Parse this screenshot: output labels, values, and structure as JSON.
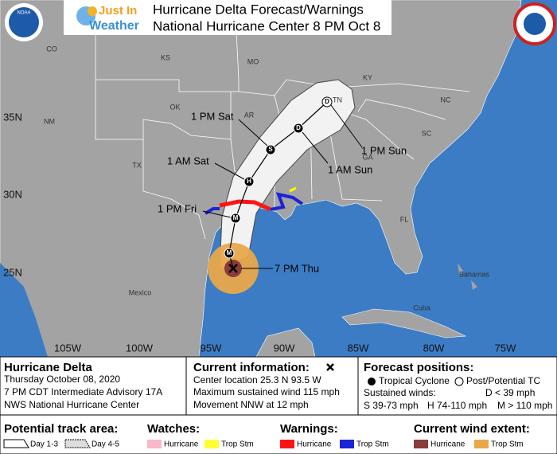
{
  "header": {
    "title": "Hurricane Delta Forecast/Warnings",
    "subtitle": "National Hurricane Center 8 PM Oct 8",
    "logo_line1": "Just In",
    "logo_line2": "Weather",
    "noaa": "NOAA"
  },
  "map": {
    "places": [
      "CO",
      "KS",
      "MO",
      "KY",
      "TN",
      "OK",
      "AR",
      "NM",
      "TX",
      "SC",
      "NC",
      "GA",
      "FL",
      "Mexico",
      "Bahamas",
      "Cuba"
    ],
    "latitudes": [
      "35N",
      "30N",
      "25N"
    ],
    "longitudes": [
      "105W",
      "100W",
      "95W",
      "90W",
      "85W",
      "80W",
      "75W"
    ],
    "track_markers": [
      "M",
      "M",
      "H",
      "S",
      "D",
      "D"
    ],
    "track_labels": [
      "7 PM Thu",
      "1 PM Fri",
      "1 AM Sat",
      "1 PM Sat",
      "1 AM Sun",
      "1 PM Sun"
    ]
  },
  "panel": {
    "storm": "Hurricane Delta",
    "date": "Thursday October 08, 2020",
    "advisory": "7 PM CDT Intermediate Advisory 17A",
    "office": "NWS National Hurricane Center",
    "current_heading": "Current information:",
    "current_lines": [
      "Center location 25.3 N 93.5 W",
      "Maximum sustained wind 115 mph",
      "Movement NNW at 12 mph"
    ],
    "forecast_heading": "Forecast positions:",
    "tropical": "Tropical Cyclone",
    "post": "Post/Potential TC",
    "winds_heading": "Sustained winds:",
    "winds": [
      "D < 39 mph",
      "S 39-73 mph",
      "H 74-110 mph",
      "M > 110 mph"
    ]
  },
  "legend": {
    "track_heading": "Potential track area:",
    "day13": "Day 1-3",
    "day45": "Day 4-5",
    "watches_heading": "Watches:",
    "watches": [
      "Hurricane",
      "Trop Stm"
    ],
    "warnings_heading": "Warnings:",
    "warnings": [
      "Hurricane",
      "Trop Stm"
    ],
    "extent_heading": "Current wind extent:",
    "extent": [
      "Hurricane",
      "Trop Stm"
    ]
  }
}
